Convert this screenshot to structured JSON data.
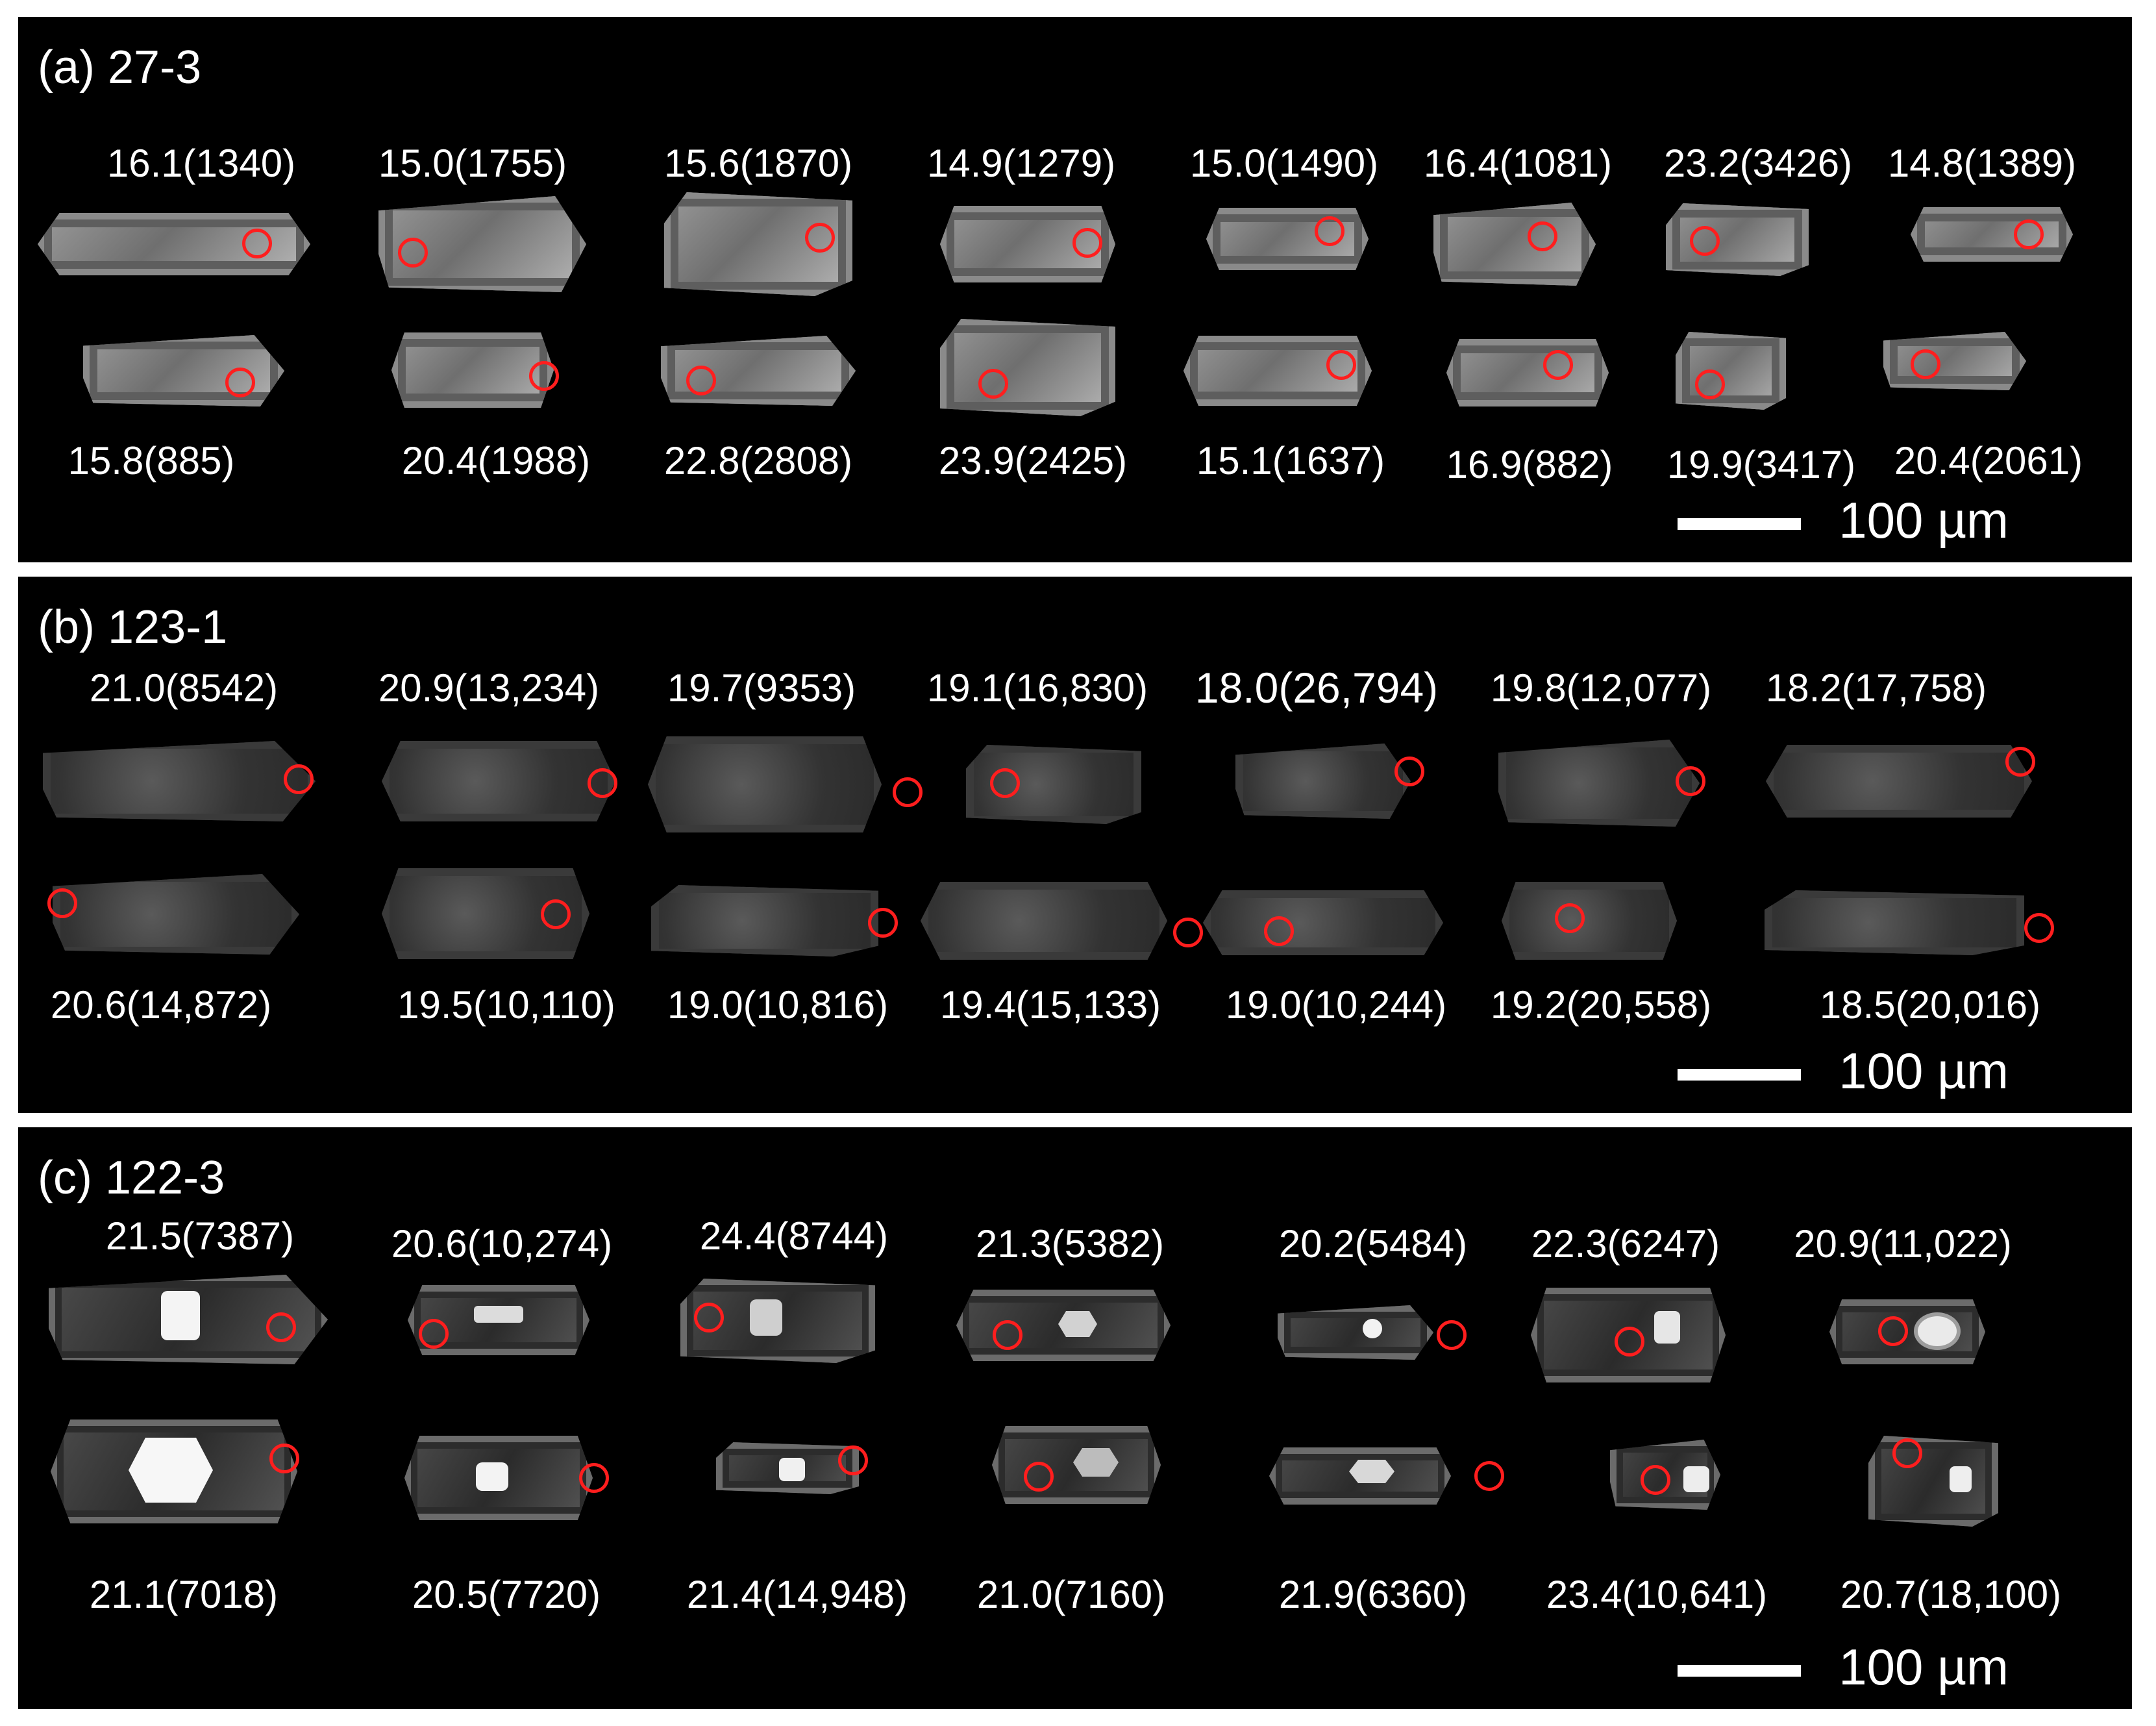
{
  "panels": [
    {
      "title": "(a) 27-3",
      "scale_label": "100 µm",
      "top_labels": [
        "16.1(1340)",
        "15.0(1755)",
        "15.6(1870)",
        "14.9(1279)",
        "15.0(1490)",
        "16.4(1081)",
        "23.2(3426)",
        "14.8(1389)"
      ],
      "bottom_labels": [
        "15.8(885)",
        "20.4(1988)",
        "22.8(2808)",
        "23.9(2425)",
        "15.1(1637)",
        "16.9(882)",
        "19.9(3417)",
        "20.4(2061)"
      ]
    },
    {
      "title": "(b) 123-1",
      "scale_label": "100 µm",
      "top_labels": [
        "21.0(8542)",
        "20.9(13,234)",
        "19.7(9353)",
        "19.1(16,830)",
        "18.0(26,794)",
        "19.8(12,077)",
        "18.2(17,758)"
      ],
      "bottom_labels": [
        "20.6(14,872)",
        "19.5(10,110)",
        "19.0(10,816)",
        "19.4(15,133)",
        "19.0(10,244)",
        "19.2(20,558)",
        "18.5(20,016)"
      ]
    },
    {
      "title": "(c) 122-3",
      "scale_label": "100 µm",
      "top_labels": [
        "21.5(7387)",
        "20.6(10,274)",
        "24.4(8744)",
        "21.3(5382)",
        "20.2(5484)",
        "22.3(6247)",
        "20.9(11,022)"
      ],
      "bottom_labels": [
        "21.1(7018)",
        "20.5(7720)",
        "21.4(14,948)",
        "21.0(7160)",
        "21.9(6360)",
        "23.4(10,641)",
        "20.7(18,100)"
      ]
    }
  ],
  "colors": {
    "background": "#000000",
    "text": "#ffffff",
    "spot": "#ff1e1e",
    "separator": "#ffffff"
  }
}
